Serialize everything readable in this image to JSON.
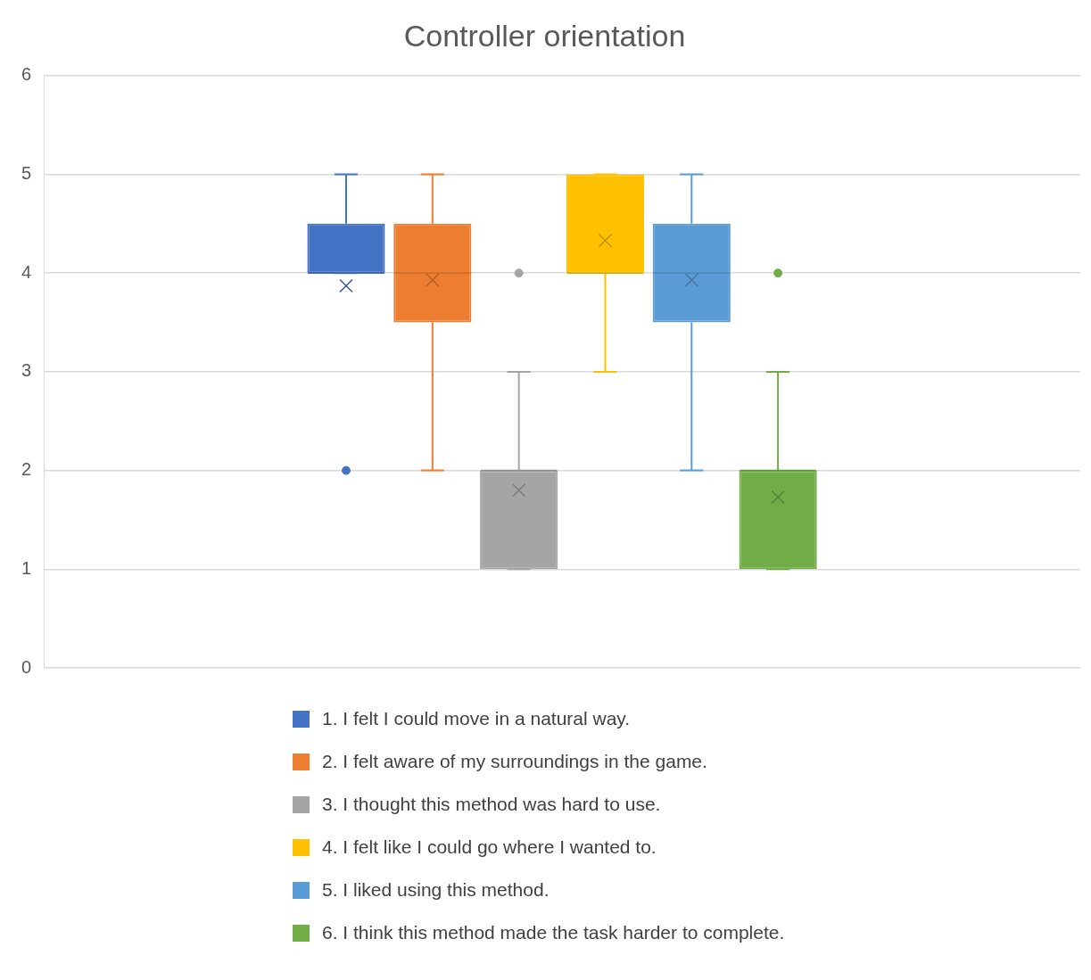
{
  "chart_data": {
    "type": "box",
    "title": "Controller orientation",
    "categories": [
      null
    ],
    "ylim": [
      0,
      6
    ],
    "yticks": [
      0,
      1,
      2,
      3,
      4,
      5,
      6
    ],
    "grid": "y",
    "legend": "bottom",
    "marker": "cross",
    "series": [
      {
        "name": "1. I felt I could move in a natural way.",
        "color": "#4472c4",
        "boxes": [
          {
            "low": 4,
            "q1": 4,
            "median": 4,
            "q3": 4.5,
            "high": 5,
            "mean": 3.87,
            "outliers": [
              2
            ]
          }
        ]
      },
      {
        "name": "2. I felt aware of my surroundings in the game.",
        "color": "#ed7d31",
        "boxes": [
          {
            "low": 2,
            "q1": 3.5,
            "median": 4,
            "q3": 4.5,
            "high": 5,
            "mean": 3.93
          }
        ]
      },
      {
        "name": "3. I thought this method was hard to use.",
        "color": "#a5a5a5",
        "boxes": [
          {
            "low": 1,
            "q1": 1,
            "median": 2,
            "q3": 2,
            "high": 3,
            "mean": 1.8,
            "outliers": [
              4
            ]
          }
        ]
      },
      {
        "name": "4. I felt like I could go where I wanted to.",
        "color": "#ffc000",
        "boxes": [
          {
            "low": 3,
            "q1": 4,
            "median": 4,
            "q3": 5,
            "high": 5,
            "mean": 4.33
          }
        ]
      },
      {
        "name": "5. I liked using this method.",
        "color": "#5b9bd5",
        "boxes": [
          {
            "low": 2,
            "q1": 3.5,
            "median": 4,
            "q3": 4.5,
            "high": 5,
            "mean": 3.93
          }
        ]
      },
      {
        "name": "6. I think this method made the task harder to complete.",
        "color": "#70ad47",
        "boxes": [
          {
            "low": 1,
            "q1": 1,
            "median": 2,
            "q3": 2,
            "high": 3,
            "mean": 1.73,
            "outliers": [
              4
            ]
          }
        ]
      }
    ]
  }
}
